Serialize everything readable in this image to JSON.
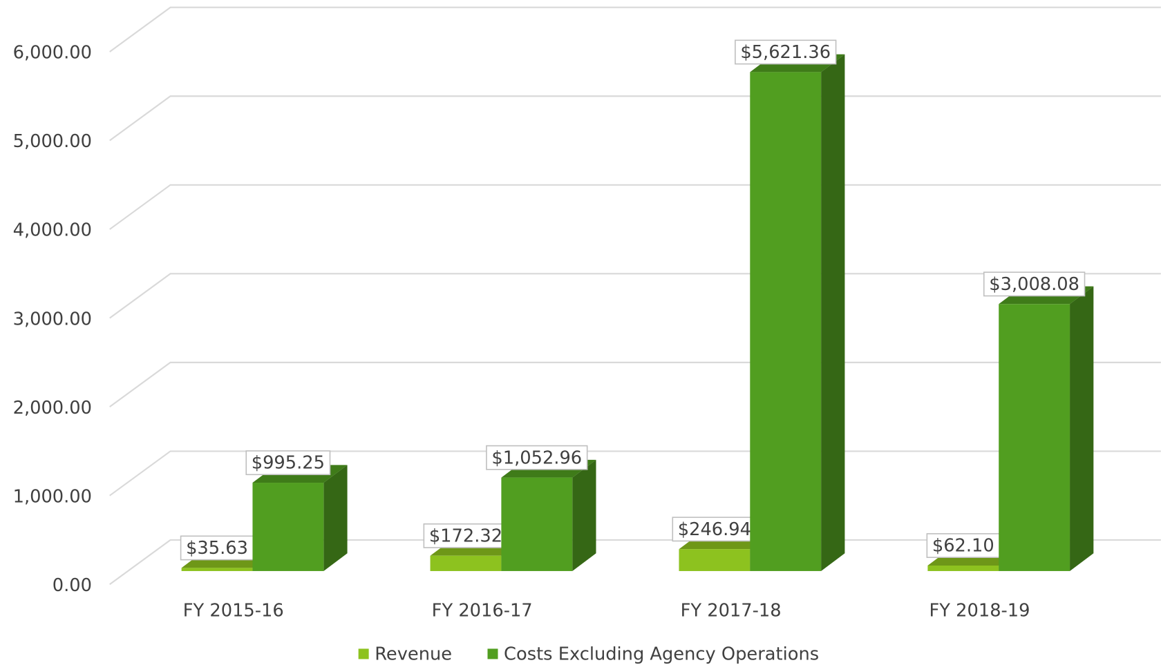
{
  "chart_data": {
    "type": "bar3d",
    "categories": [
      "FY 2015-16",
      "FY 2016-17",
      "FY 2017-18",
      "FY 2018-19"
    ],
    "series": [
      {
        "name": "Revenue",
        "color": "#8dc21f",
        "values": [
          35.63,
          172.32,
          246.94,
          62.1
        ],
        "value_labels": [
          "$35.63",
          "$172.32",
          "$246.94",
          "$62.10"
        ]
      },
      {
        "name": "Costs Excluding Agency Operations",
        "color": "#519e20",
        "values": [
          995.25,
          1052.96,
          5621.36,
          3008.08
        ],
        "value_labels": [
          "$995.25",
          "$1,052.96",
          "$5,621.36",
          "$3,008.08"
        ]
      }
    ],
    "ylim": [
      0,
      6000
    ],
    "yticks": [
      {
        "value": 0,
        "label": "0.00"
      },
      {
        "value": 1000,
        "label": "1,000.00"
      },
      {
        "value": 2000,
        "label": "2,000.00"
      },
      {
        "value": 3000,
        "label": "3,000.00"
      },
      {
        "value": 4000,
        "label": "4,000.00"
      },
      {
        "value": 5000,
        "label": "5,000.00"
      },
      {
        "value": 6000,
        "label": "6,000.00"
      }
    ],
    "grid": true,
    "legend": "bottom"
  }
}
